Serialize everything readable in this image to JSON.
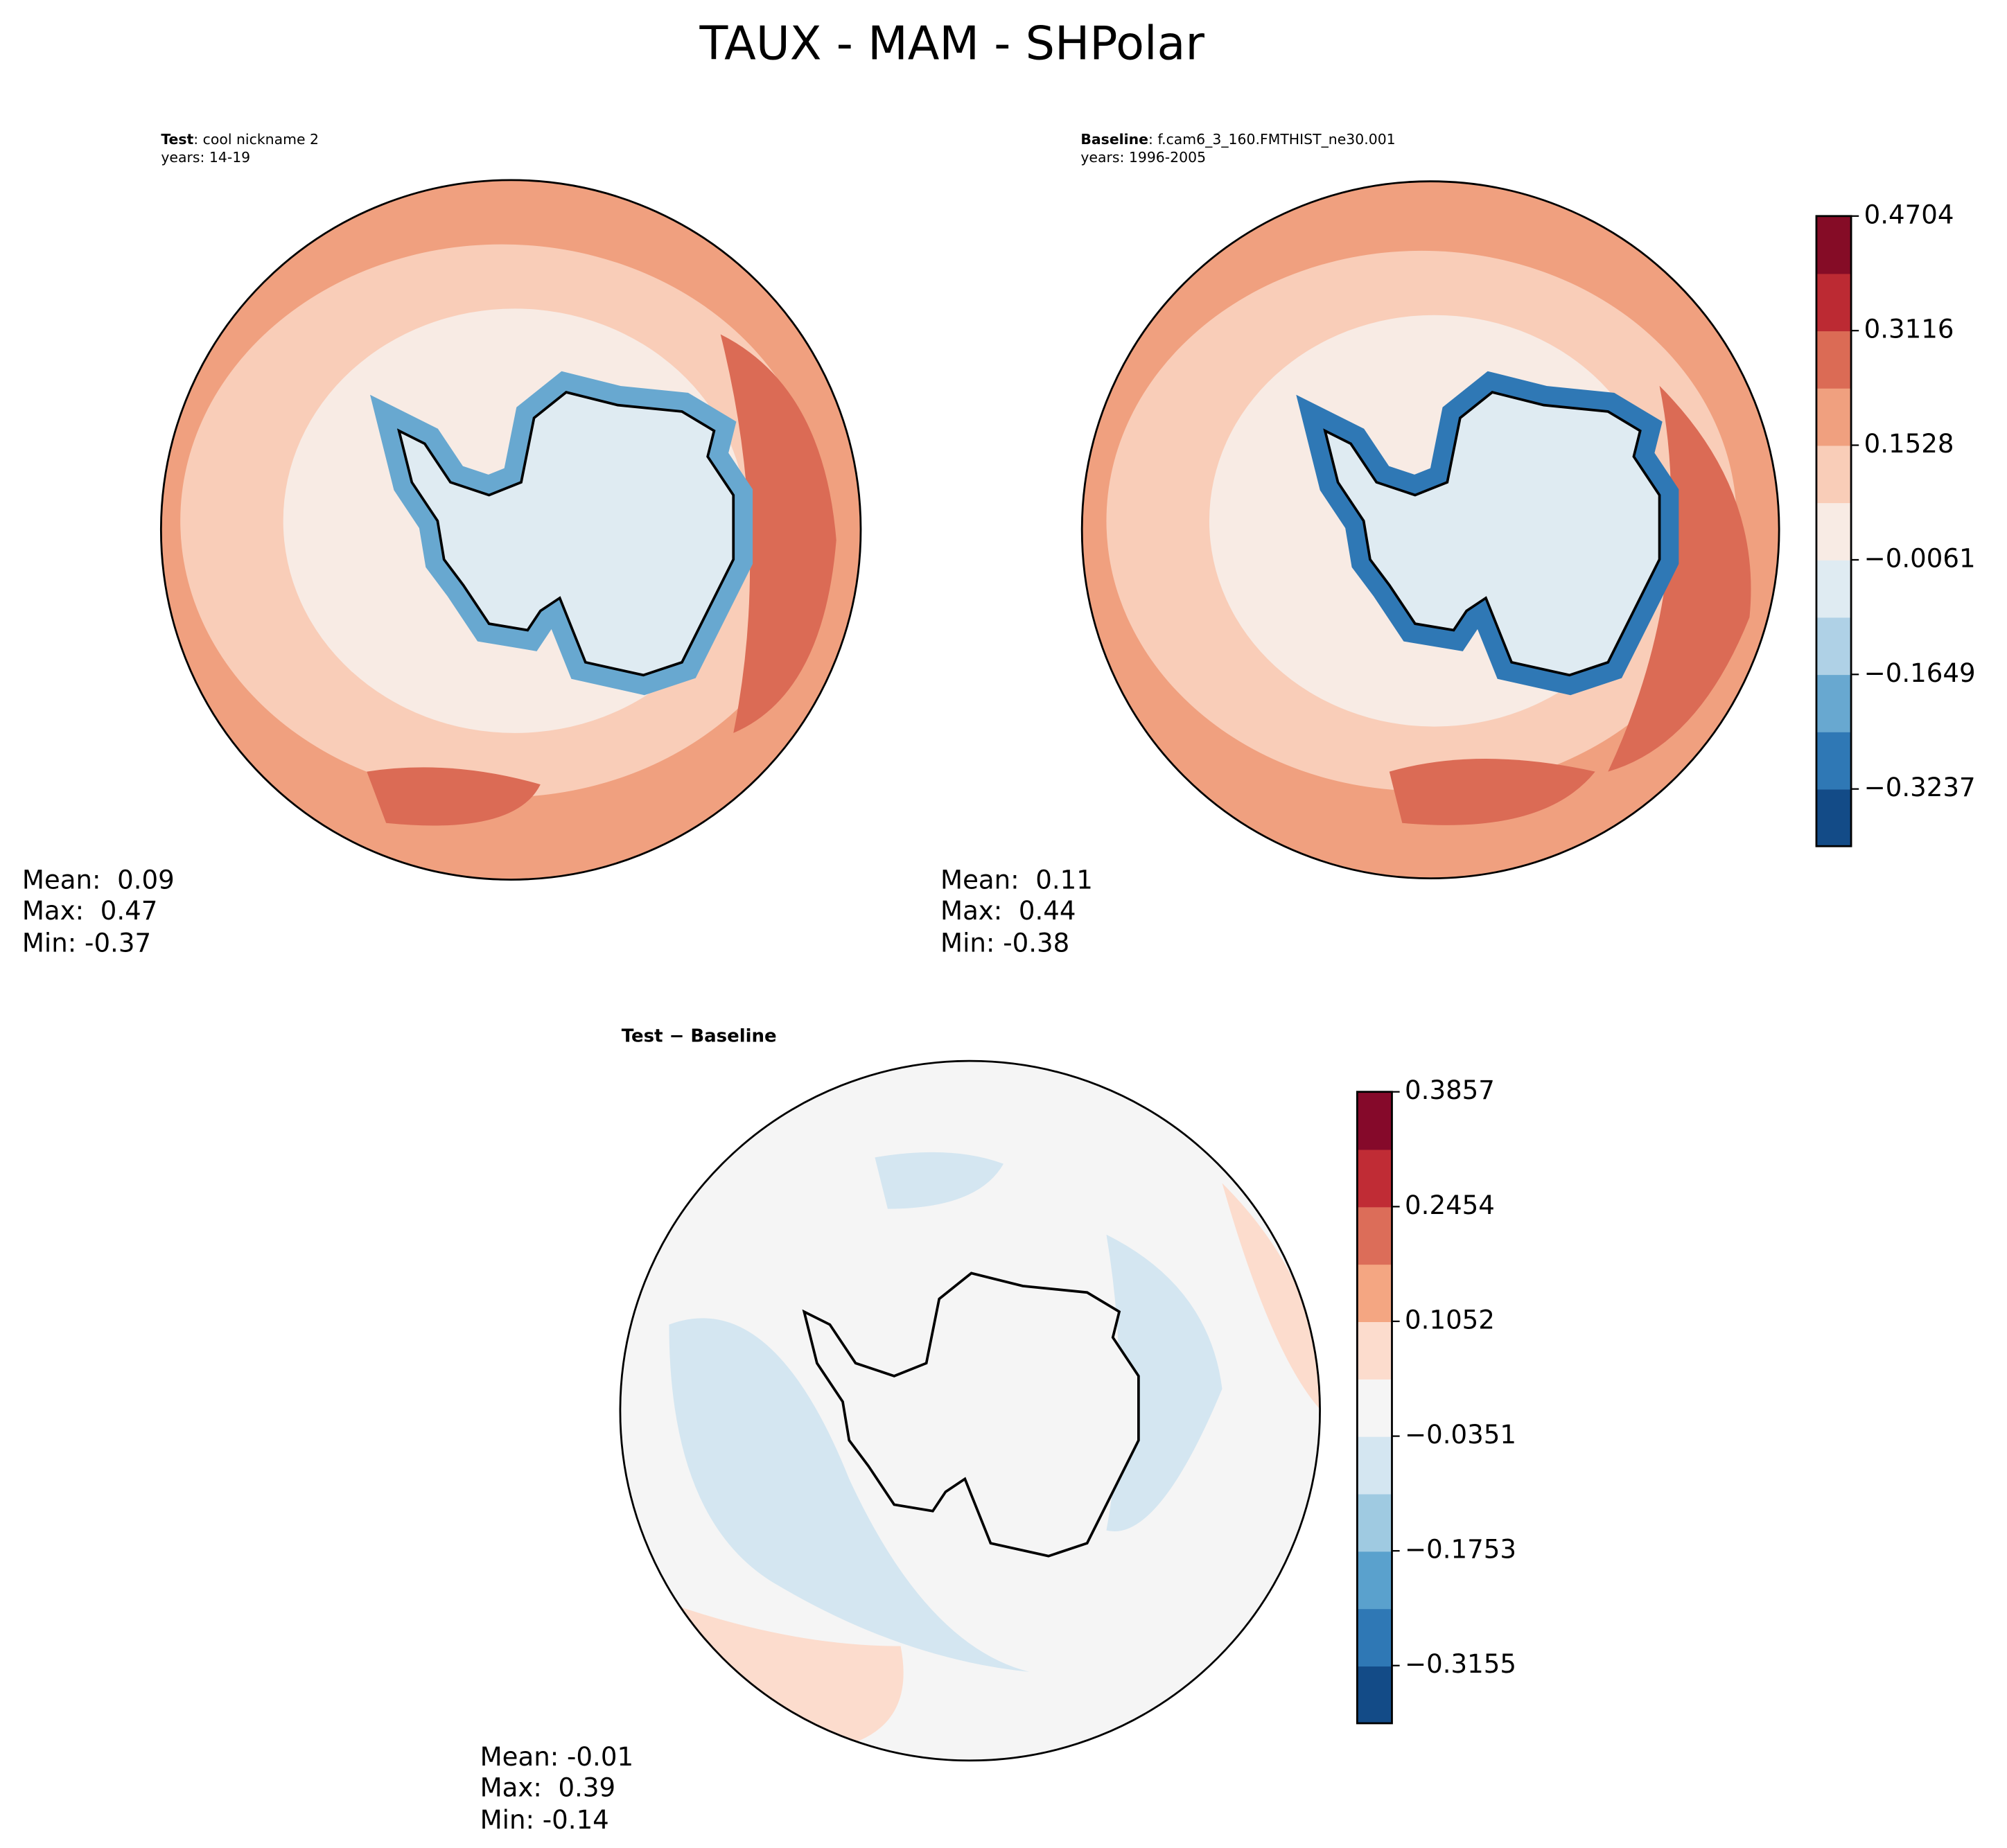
{
  "title": "TAUX - MAM - SHPolar",
  "panels": [
    {
      "label": "Test",
      "case": ": cool nickname 2",
      "years": "years: 14-19",
      "stats": [
        "Mean:  0.09",
        "Max:  0.47",
        "Min: -0.37"
      ]
    },
    {
      "label": "Baseline",
      "case": ": f.cam6_3_160.FMTHIST_ne30.001",
      "years": "years: 1996-2005",
      "stats": [
        "Mean:  0.11",
        "Max:  0.44",
        "Min: -0.38"
      ]
    },
    {
      "label": "Test − Baseline",
      "stats": [
        "Mean: -0.01",
        "Max:  0.39",
        "Min: -0.14"
      ]
    }
  ],
  "colorbars": [
    {
      "ylim": [
        -0.403,
        0.4704
      ],
      "yticks": [
        0.4704,
        0.3116,
        0.1528,
        {
          "value": -0.0061,
          "label": "−0.0061"
        },
        {
          "value": -0.1649,
          "label": "−0.1649"
        },
        {
          "value": -0.3237,
          "label": "−0.3237"
        }
      ],
      "colors": [
        "#134b87",
        "#2f78b5",
        "#68a8d0",
        "#afd1e6",
        "#dfebf2",
        "#f8ebe4",
        "#f9cdb8",
        "#f0a07f",
        "#db6b55",
        "#bc2a33",
        "#850c26"
      ]
    },
    {
      "ylim": [
        -0.386,
        0.3857
      ],
      "yticks": [
        0.3857,
        0.2454,
        0.1052,
        {
          "value": -0.0351,
          "label": "−0.0351"
        },
        {
          "value": -0.1753,
          "label": "−0.1753"
        },
        {
          "value": -0.3155,
          "label": "−0.3155"
        }
      ],
      "colors": [
        "#134b87",
        "#2f78b5",
        "#5aa1cd",
        "#9fcae1",
        "#d4e6f1",
        "#f5f5f5",
        "#fcdccd",
        "#f4a682",
        "#dc6d59",
        "#c02c35",
        "#85092a"
      ]
    }
  ]
}
